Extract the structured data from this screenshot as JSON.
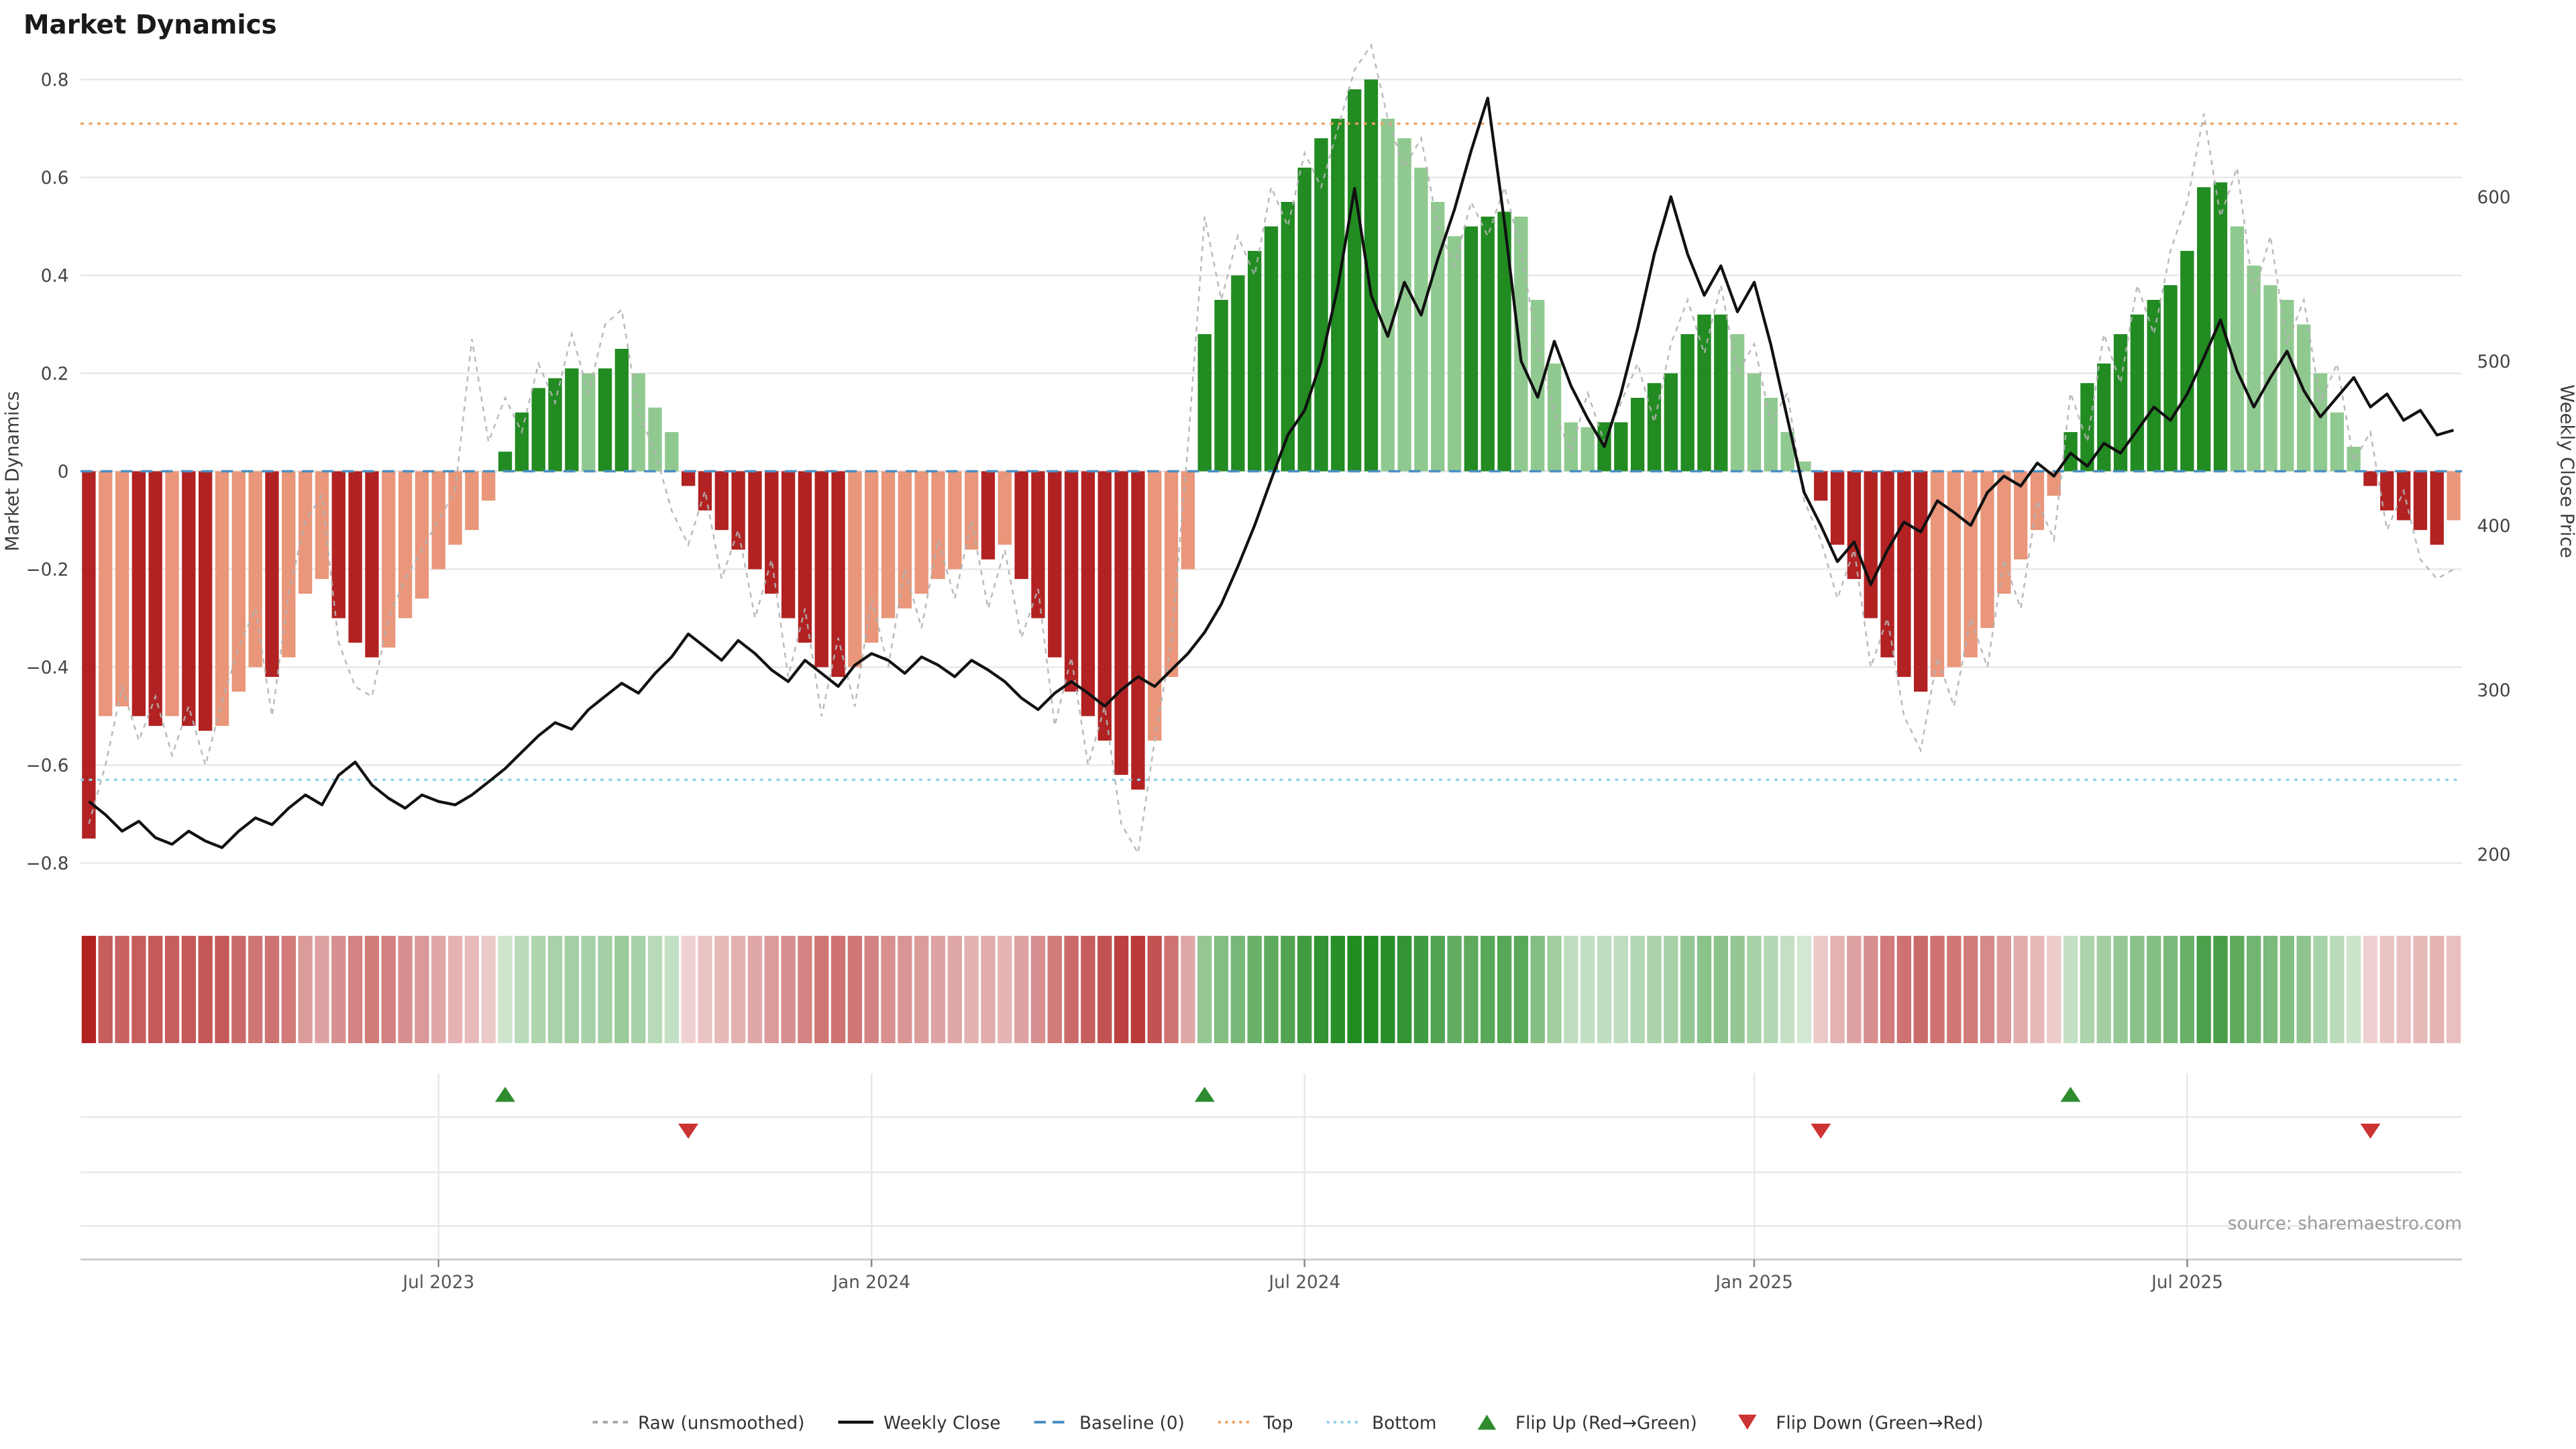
{
  "chart_data": {
    "type": "bar+line composite (oscillator with price overlay, heatmap strip and flip markers)",
    "title": "Market Dynamics",
    "source": "source: sharemaestro.com",
    "y_left": {
      "label": "Market Dynamics",
      "min": -0.85,
      "max": 0.87,
      "ticks": [
        {
          "v": 0.8,
          "label": "0.8"
        },
        {
          "v": 0.6,
          "label": "0.6"
        },
        {
          "v": 0.4,
          "label": "0.4"
        },
        {
          "v": 0.2,
          "label": "0.2"
        },
        {
          "v": 0.0,
          "label": "0"
        },
        {
          "v": -0.2,
          "label": "−0.2"
        },
        {
          "v": -0.4,
          "label": "−0.4"
        },
        {
          "v": -0.6,
          "label": "−0.6"
        },
        {
          "v": -0.8,
          "label": "−0.8"
        }
      ]
    },
    "y_right": {
      "label": "Weekly Close Price",
      "ticks": [
        {
          "p": 600,
          "label": "600"
        },
        {
          "p": 500,
          "label": "500"
        },
        {
          "p": 400,
          "label": "400"
        },
        {
          "p": 300,
          "label": "300"
        },
        {
          "p": 200,
          "label": "200"
        }
      ]
    },
    "x_ticks": [
      {
        "week": 21,
        "label": "Jul 2023"
      },
      {
        "week": 47,
        "label": "Jan 2024"
      },
      {
        "week": 73,
        "label": "Jul 2024"
      },
      {
        "week": 100,
        "label": "Jan 2025"
      },
      {
        "week": 126,
        "label": "Jul 2025"
      }
    ],
    "thresholds": {
      "baseline": 0,
      "top": 0.71,
      "bottom": -0.63
    },
    "series": {
      "dynamics_smoothed": [
        -0.75,
        -0.5,
        -0.48,
        -0.5,
        -0.52,
        -0.5,
        -0.52,
        -0.53,
        -0.52,
        -0.45,
        -0.4,
        -0.42,
        -0.38,
        -0.25,
        -0.22,
        -0.3,
        -0.35,
        -0.38,
        -0.36,
        -0.3,
        -0.26,
        -0.2,
        -0.15,
        -0.12,
        -0.06,
        0.04,
        0.12,
        0.17,
        0.19,
        0.21,
        0.2,
        0.21,
        0.25,
        0.2,
        0.13,
        0.08,
        -0.03,
        -0.08,
        -0.12,
        -0.16,
        -0.2,
        -0.25,
        -0.3,
        -0.35,
        -0.4,
        -0.42,
        -0.4,
        -0.35,
        -0.3,
        -0.28,
        -0.25,
        -0.22,
        -0.2,
        -0.16,
        -0.18,
        -0.15,
        -0.22,
        -0.3,
        -0.38,
        -0.45,
        -0.5,
        -0.55,
        -0.62,
        -0.65,
        -0.55,
        -0.42,
        -0.2,
        0.28,
        0.35,
        0.4,
        0.45,
        0.5,
        0.55,
        0.62,
        0.68,
        0.72,
        0.78,
        0.8,
        0.72,
        0.68,
        0.62,
        0.55,
        0.48,
        0.5,
        0.52,
        0.53,
        0.52,
        0.35,
        0.22,
        0.1,
        0.09,
        0.1,
        0.1,
        0.15,
        0.18,
        0.2,
        0.28,
        0.32,
        0.32,
        0.28,
        0.2,
        0.15,
        0.08,
        0.02,
        -0.06,
        -0.15,
        -0.22,
        -0.3,
        -0.38,
        -0.42,
        -0.45,
        -0.42,
        -0.4,
        -0.38,
        -0.32,
        -0.25,
        -0.18,
        -0.12,
        -0.05,
        0.08,
        0.18,
        0.22,
        0.28,
        0.32,
        0.35,
        0.38,
        0.45,
        0.58,
        0.59,
        0.5,
        0.42,
        0.38,
        0.35,
        0.3,
        0.2,
        0.12,
        0.05,
        -0.03,
        -0.08,
        -0.1,
        -0.12,
        -0.15,
        -0.1
      ],
      "dynamics_raw": [
        -0.72,
        -0.6,
        -0.44,
        -0.55,
        -0.46,
        -0.58,
        -0.48,
        -0.6,
        -0.47,
        -0.36,
        -0.28,
        -0.5,
        -0.25,
        -0.1,
        -0.05,
        -0.35,
        -0.44,
        -0.46,
        -0.3,
        -0.22,
        -0.16,
        -0.1,
        -0.04,
        0.27,
        0.06,
        0.15,
        0.08,
        0.22,
        0.14,
        0.28,
        0.16,
        0.3,
        0.33,
        0.12,
        0.04,
        -0.08,
        -0.15,
        -0.04,
        -0.22,
        -0.12,
        -0.3,
        -0.18,
        -0.42,
        -0.28,
        -0.5,
        -0.34,
        -0.48,
        -0.26,
        -0.4,
        -0.2,
        -0.32,
        -0.14,
        -0.26,
        -0.1,
        -0.28,
        -0.16,
        -0.34,
        -0.24,
        -0.52,
        -0.38,
        -0.6,
        -0.48,
        -0.72,
        -0.78,
        -0.55,
        -0.35,
        0.05,
        0.52,
        0.35,
        0.48,
        0.4,
        0.58,
        0.5,
        0.65,
        0.58,
        0.7,
        0.82,
        0.87,
        0.72,
        0.62,
        0.68,
        0.5,
        0.42,
        0.55,
        0.48,
        0.58,
        0.45,
        0.25,
        0.12,
        0.04,
        0.16,
        0.06,
        0.14,
        0.22,
        0.1,
        0.26,
        0.35,
        0.24,
        0.38,
        0.2,
        0.26,
        0.1,
        0.16,
        -0.06,
        -0.14,
        -0.26,
        -0.16,
        -0.4,
        -0.3,
        -0.5,
        -0.57,
        -0.38,
        -0.48,
        -0.3,
        -0.4,
        -0.18,
        -0.28,
        -0.06,
        -0.14,
        0.16,
        0.06,
        0.28,
        0.18,
        0.38,
        0.28,
        0.45,
        0.55,
        0.73,
        0.52,
        0.62,
        0.36,
        0.48,
        0.26,
        0.35,
        0.14,
        0.22,
        0.02,
        0.08,
        -0.12,
        -0.04,
        -0.18,
        -0.22,
        -0.2
      ],
      "weekly_close": [
        232,
        224,
        214,
        220,
        210,
        206,
        214,
        208,
        204,
        214,
        222,
        218,
        228,
        236,
        230,
        248,
        256,
        242,
        234,
        228,
        236,
        232,
        230,
        236,
        244,
        252,
        262,
        272,
        280,
        276,
        288,
        296,
        304,
        298,
        310,
        320,
        334,
        326,
        318,
        330,
        322,
        312,
        305,
        318,
        310,
        302,
        315,
        322,
        318,
        310,
        320,
        315,
        308,
        318,
        312,
        305,
        295,
        288,
        298,
        305,
        298,
        290,
        300,
        308,
        302,
        312,
        322,
        335,
        352,
        375,
        400,
        428,
        455,
        470,
        500,
        545,
        605,
        540,
        515,
        548,
        528,
        562,
        592,
        628,
        660,
        585,
        500,
        478,
        512,
        485,
        465,
        448,
        480,
        520,
        565,
        600,
        565,
        540,
        558,
        530,
        548,
        510,
        465,
        420,
        400,
        378,
        390,
        364,
        385,
        402,
        396,
        415,
        408,
        400,
        420,
        430,
        424,
        438,
        430,
        444,
        436,
        450,
        444,
        458,
        472,
        464,
        480,
        502,
        525,
        494,
        472,
        490,
        506,
        482,
        466,
        478,
        490,
        472,
        480,
        464,
        470,
        455,
        458
      ]
    },
    "flips": {
      "up_weeks": [
        25,
        67,
        119
      ],
      "down_weeks": [
        36,
        104,
        137
      ]
    },
    "legend": [
      {
        "label": "Raw (unsmoothed)",
        "type": "line-dashed",
        "color": "#a9a9a9"
      },
      {
        "label": "Weekly Close",
        "type": "line-solid",
        "color": "#111111"
      },
      {
        "label": "Baseline (0)",
        "type": "line-longdash",
        "color": "#4a90c4"
      },
      {
        "label": "Top",
        "type": "line-dotted",
        "color": "#f2a15f"
      },
      {
        "label": "Bottom",
        "type": "line-dotted",
        "color": "#8fd0e8"
      },
      {
        "label": "Flip Up (Red→Green)",
        "type": "triangle-up",
        "color": "#2e8b2e"
      },
      {
        "label": "Flip Down (Green→Red)",
        "type": "triangle-down",
        "color": "#cc3333"
      }
    ],
    "colors": {
      "red_dark": "#b22222",
      "red_light": "#e9967a",
      "green_dark": "#228b22",
      "green_light": "#90c990",
      "close_line": "#111111",
      "raw_line": "#b3b3b3",
      "baseline": "#4a90c4",
      "top_line": "#f2a15f",
      "bottom_line": "#8fd0e8",
      "flip_up": "#2e8b2e",
      "flip_down": "#cc3333",
      "grid": "#e8e8e8",
      "axis_spine": "#cfcfcf"
    }
  }
}
